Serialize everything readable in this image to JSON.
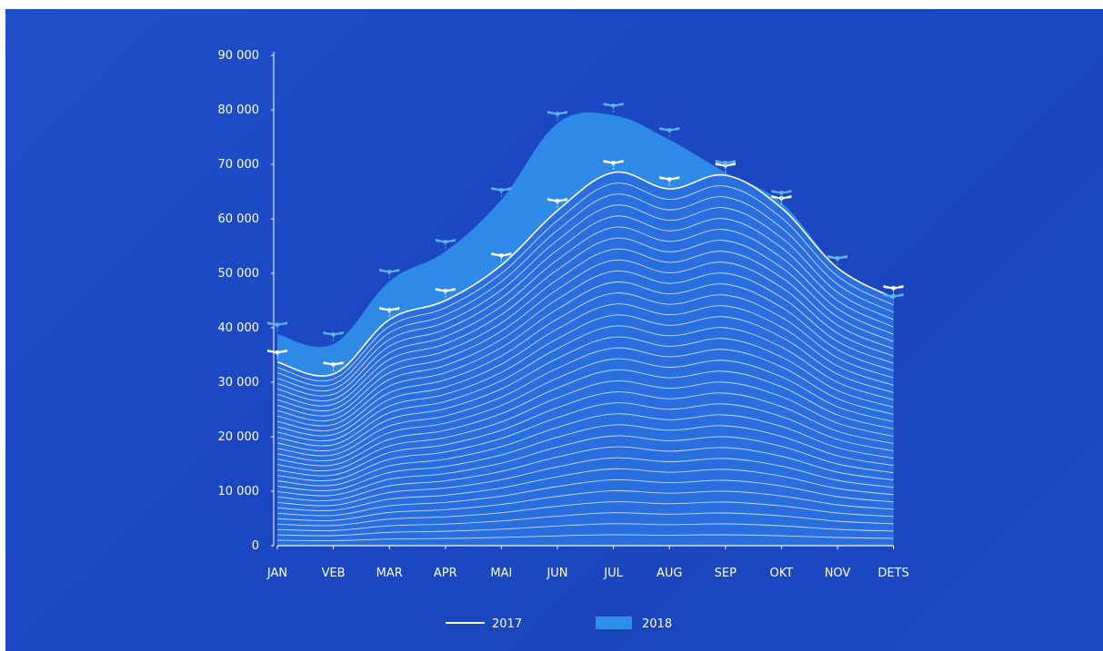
{
  "chart_data": {
    "type": "area",
    "categories": [
      "JAN",
      "VEB",
      "MAR",
      "APR",
      "MAI",
      "JUN",
      "JUL",
      "AUG",
      "SEP",
      "OKT",
      "NOV",
      "DETS"
    ],
    "yticks": [
      "0",
      "10 000",
      "20 000",
      "30 000",
      "40 000",
      "50 000",
      "60 000",
      "70 000",
      "80 000",
      "90 000"
    ],
    "ylim": [
      0,
      90000
    ],
    "series": [
      {
        "name": "2017",
        "values": [
          33700,
          31500,
          41500,
          45000,
          51500,
          61500,
          68500,
          65500,
          68000,
          62000,
          51000,
          45500
        ]
      },
      {
        "name": "2018",
        "values": [
          38800,
          37000,
          48500,
          54000,
          63500,
          77500,
          79000,
          74500,
          68500,
          63000,
          51000,
          44000
        ]
      }
    ],
    "legend": {
      "placement": "bottom"
    },
    "colors": {
      "area_2018": "#2f8ee8",
      "line_2017": "#ffffff",
      "background": "#1d4ac4"
    }
  }
}
